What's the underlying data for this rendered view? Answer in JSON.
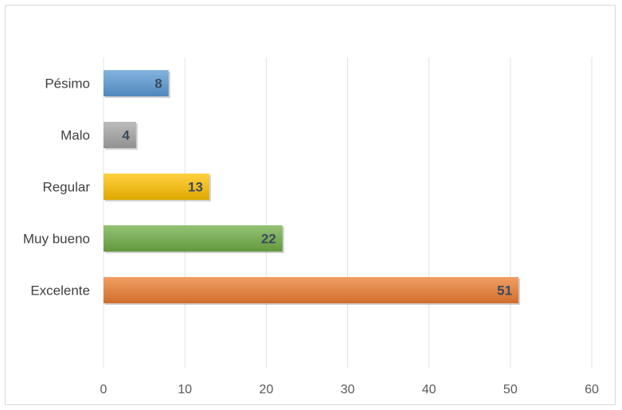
{
  "chart_data": {
    "type": "bar",
    "orientation": "horizontal",
    "categories": [
      "Pésimo",
      "Malo",
      "Regular",
      "Muy bueno",
      "Excelente"
    ],
    "values": [
      8,
      4,
      13,
      22,
      51
    ],
    "colors": [
      "#5b9bd5",
      "#a5a5a5",
      "#ffc000",
      "#70ad47",
      "#ed7d31"
    ],
    "xlim": [
      0,
      60
    ],
    "xticks": [
      "0",
      "10",
      "20",
      "30",
      "40",
      "50",
      "60"
    ],
    "grid": true,
    "data_labels": true,
    "title": "",
    "xlabel": "",
    "ylabel": ""
  }
}
